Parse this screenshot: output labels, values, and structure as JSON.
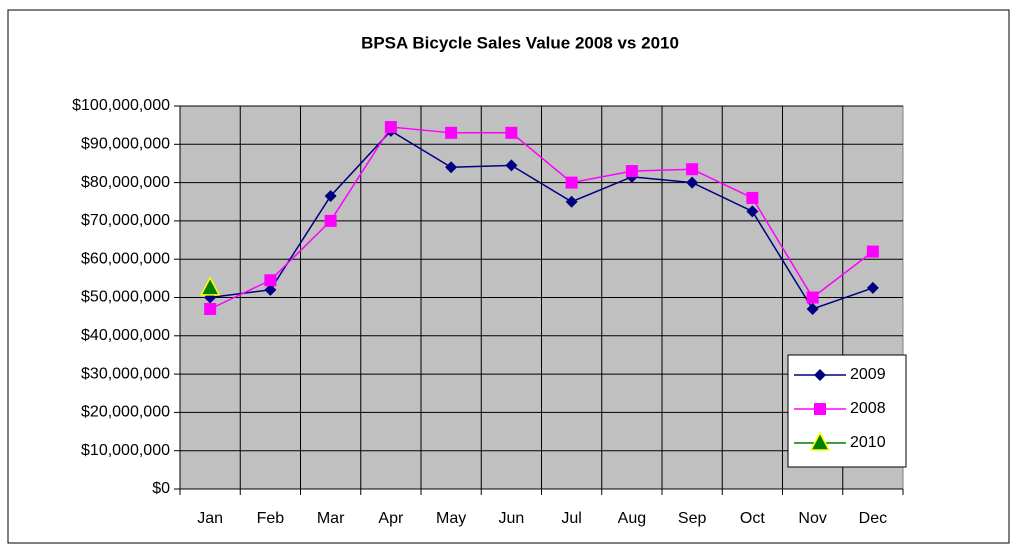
{
  "chart_data": {
    "type": "line",
    "title": "BPSA Bicycle Sales Value 2008 vs 2010",
    "categories": [
      "Jan",
      "Feb",
      "Mar",
      "Apr",
      "May",
      "Jun",
      "Jul",
      "Aug",
      "Sep",
      "Oct",
      "Nov",
      "Dec"
    ],
    "series": [
      {
        "name": "2009",
        "color": "#000080",
        "marker": "diamond",
        "values": [
          50000000,
          52000000,
          76500000,
          93500000,
          84000000,
          84500000,
          75000000,
          81500000,
          80000000,
          72500000,
          47000000,
          52500000
        ]
      },
      {
        "name": "2008",
        "color": "#ff00ff",
        "marker": "square",
        "values": [
          47000000,
          54500000,
          70000000,
          94500000,
          93000000,
          93000000,
          80000000,
          83000000,
          83500000,
          76000000,
          50000000,
          62000000
        ]
      },
      {
        "name": "2010",
        "color": "#008000",
        "marker": "triangle",
        "values": [
          52500000,
          null,
          null,
          null,
          null,
          null,
          null,
          null,
          null,
          null,
          null,
          null
        ]
      }
    ],
    "ylim": [
      0,
      100000000
    ],
    "yticks": [
      {
        "value": 0,
        "label": "$0"
      },
      {
        "value": 10000000,
        "label": "$10,000,000"
      },
      {
        "value": 20000000,
        "label": "$20,000,000"
      },
      {
        "value": 30000000,
        "label": "$30,000,000"
      },
      {
        "value": 40000000,
        "label": "$40,000,000"
      },
      {
        "value": 50000000,
        "label": "$50,000,000"
      },
      {
        "value": 60000000,
        "label": "$60,000,000"
      },
      {
        "value": 70000000,
        "label": "$70,000,000"
      },
      {
        "value": 80000000,
        "label": "$80,000,000"
      },
      {
        "value": 90000000,
        "label": "$90,000,000"
      },
      {
        "value": 100000000,
        "label": "$100,000,000"
      }
    ],
    "grid": true,
    "legend": "lower right",
    "plot_background": "#c0c0c0"
  }
}
